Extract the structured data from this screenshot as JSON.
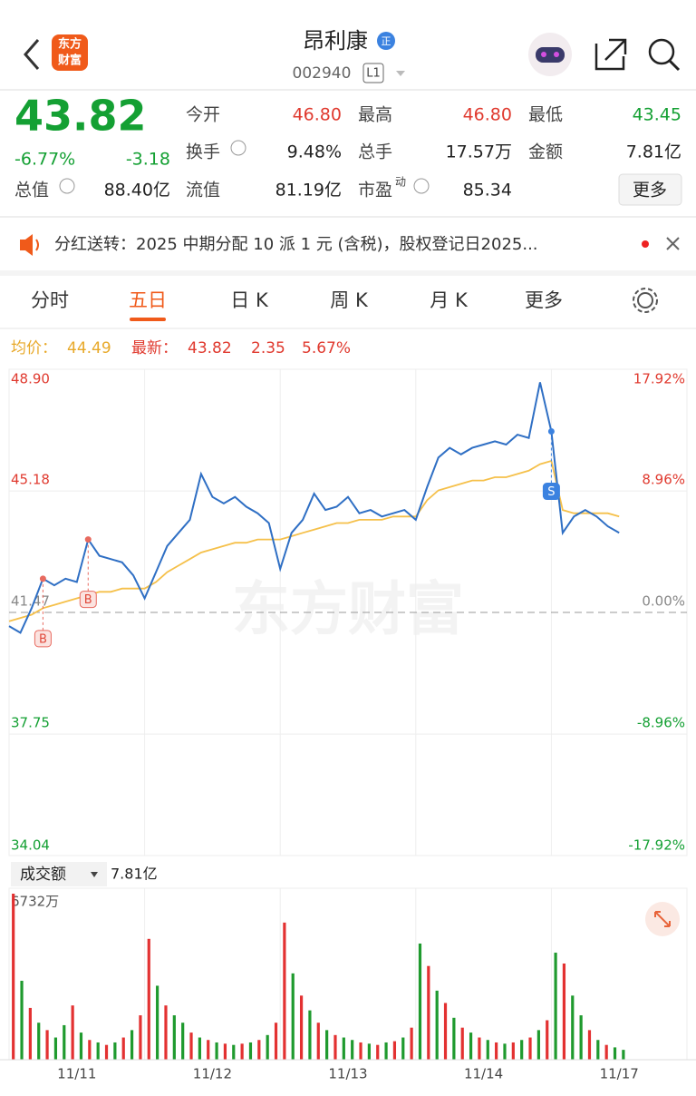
{
  "header": {
    "logo": [
      "东方",
      "财富"
    ],
    "title": "昂利康",
    "badge": "正",
    "code": "002940",
    "level": "L1"
  },
  "quote": {
    "price": "43.82",
    "change_pct": "-6.77%",
    "change": "-3.18",
    "rows": [
      [
        {
          "label": "今开",
          "value": "46.80"
        },
        {
          "label": "最高",
          "value": "46.80"
        },
        {
          "label": "最低",
          "value": "43.45"
        }
      ],
      [
        {
          "label": "换手",
          "value": "9.48%"
        },
        {
          "label": "总手",
          "value": "17.57万"
        },
        {
          "label": "金额",
          "value": "7.81亿"
        }
      ],
      [
        {
          "label": "总值",
          "value": "88.40亿"
        },
        {
          "label": "流值",
          "value": "81.19亿"
        },
        {
          "label": "市盈",
          "sup": "动",
          "value": "85.34"
        }
      ]
    ],
    "more": "更多"
  },
  "notice": {
    "text": "分红送转：2025 中期分配 10 派 1 元 (含税)，股权登记日2025..."
  },
  "tabs": {
    "items": [
      "分时",
      "五日",
      "日 K",
      "周 K",
      "月 K",
      "更多"
    ],
    "active": 1
  },
  "info": {
    "avg_label": "均价：",
    "avg": "44.49",
    "latest_label": "最新：",
    "latest": "43.82",
    "change": "2.35",
    "pct": "5.67%"
  },
  "price_chart": {
    "type": "line",
    "ylim": [
      34.04,
      48.9
    ],
    "yticks": [
      {
        "value": 48.9,
        "label": "48.90"
      },
      45.18,
      41.47,
      37.75,
      34.04
    ],
    "y2lim": [
      -17.92,
      17.92
    ],
    "y2ticks": [
      {
        "value": 17.92,
        "label": "17.92%"
      },
      {
        "value": 8.96,
        "label": "8.96%"
      },
      {
        "value": 0,
        "label": "0.00%"
      },
      {
        "value": -8.96,
        "label": "-8.96%"
      },
      {
        "value": -17.92,
        "label": "-17.92%"
      }
    ],
    "xlim": [
      0,
      60
    ],
    "series": [
      {
        "color": "#2f6fc4",
        "values": [
          41.05,
          40.85,
          41.6,
          42.5,
          42.3,
          42.5,
          42.4,
          43.7,
          43.2,
          43.1,
          43.0,
          42.6,
          41.9,
          42.7,
          43.5,
          43.9,
          44.3,
          45.7,
          45.0,
          44.8,
          45.0,
          44.7,
          44.5,
          44.2,
          42.8,
          43.9,
          44.3,
          45.1,
          44.6,
          44.7,
          45.0,
          44.5,
          44.6,
          44.4,
          44.5,
          44.6,
          44.3,
          45.3,
          46.2,
          46.5,
          46.3,
          46.5,
          46.6,
          46.7,
          46.6,
          46.9,
          46.8,
          48.5,
          47.0,
          43.9,
          44.4,
          44.6,
          44.4,
          44.1,
          43.9,
          null,
          null,
          null,
          null,
          null
        ]
      },
      {
        "color": "#f5c04a",
        "values": [
          41.2,
          41.3,
          41.4,
          41.6,
          41.7,
          41.8,
          41.9,
          42.0,
          42.1,
          42.1,
          42.2,
          42.2,
          42.2,
          42.4,
          42.7,
          42.9,
          43.1,
          43.3,
          43.4,
          43.5,
          43.6,
          43.6,
          43.7,
          43.7,
          43.7,
          43.8,
          43.9,
          44.0,
          44.1,
          44.2,
          44.2,
          44.3,
          44.3,
          44.3,
          44.4,
          44.4,
          44.4,
          44.9,
          45.2,
          45.3,
          45.4,
          45.5,
          45.5,
          45.6,
          45.6,
          45.7,
          45.8,
          46.0,
          46.1,
          44.6,
          44.5,
          44.5,
          44.5,
          44.5,
          44.4,
          null,
          null,
          null,
          null,
          null
        ]
      }
    ],
    "markers": [
      {
        "label": "B",
        "x": 3
      },
      {
        "label": "B",
        "x": 7
      },
      {
        "label": "S",
        "x": 48
      }
    ],
    "watermark": "东方财富"
  },
  "volume_chart": {
    "type": "bar",
    "label": "成交额",
    "total": "7.81亿",
    "ylim": [
      0,
      6732
    ],
    "yticks": [
      {
        "value": 6732,
        "label": "6732万"
      }
    ],
    "categories": [
      "11/11",
      "11/12",
      "11/13",
      "11/14",
      "11/17"
    ],
    "values": [
      6732,
      3200,
      2100,
      1500,
      1200,
      900,
      1400,
      2200,
      1100,
      800,
      700,
      600,
      700,
      900,
      1200,
      1800,
      4900,
      3000,
      2200,
      1800,
      1500,
      1100,
      900,
      800,
      700,
      650,
      600,
      650,
      700,
      800,
      1000,
      1500,
      5560,
      3500,
      2600,
      2000,
      1500,
      1200,
      1000,
      900,
      800,
      700,
      650,
      600,
      700,
      750,
      900,
      1300,
      4710,
      3800,
      2800,
      2300,
      1700,
      1300,
      1100,
      900,
      800,
      700,
      650,
      700,
      800,
      900,
      1200,
      1600,
      4340,
      3900,
      2600,
      1800,
      1200,
      800,
      600,
      500,
      400
    ],
    "colors": [
      "#e33131",
      "#1f9a2e",
      "#e33131",
      "#1f9a2e",
      "#e33131",
      "#1f9a2e",
      "#1f9a2e",
      "#e33131",
      "#1f9a2e",
      "#e33131",
      "#1f9a2e",
      "#e33131",
      "#1f9a2e",
      "#e33131",
      "#1f9a2e",
      "#e33131",
      "#e33131",
      "#1f9a2e",
      "#e33131",
      "#1f9a2e",
      "#1f9a2e",
      "#e33131",
      "#1f9a2e",
      "#e33131",
      "#1f9a2e",
      "#e33131",
      "#1f9a2e",
      "#e33131",
      "#1f9a2e",
      "#e33131",
      "#1f9a2e",
      "#e33131",
      "#e33131",
      "#1f9a2e",
      "#e33131",
      "#1f9a2e",
      "#e33131",
      "#1f9a2e",
      "#e33131",
      "#1f9a2e",
      "#1f9a2e",
      "#e33131",
      "#1f9a2e",
      "#e33131",
      "#1f9a2e",
      "#e33131",
      "#1f9a2e",
      "#e33131",
      "#1f9a2e",
      "#e33131",
      "#1f9a2e",
      "#e33131",
      "#1f9a2e",
      "#e33131",
      "#1f9a2e",
      "#e33131",
      "#1f9a2e",
      "#e33131",
      "#1f9a2e",
      "#e33131",
      "#1f9a2e",
      "#e33131",
      "#1f9a2e",
      "#e33131",
      "#1f9a2e",
      "#e33131",
      "#1f9a2e",
      "#1f9a2e",
      "#e33131",
      "#1f9a2e",
      "#e33131",
      "#1f9a2e",
      "#1f9a2e"
    ]
  }
}
